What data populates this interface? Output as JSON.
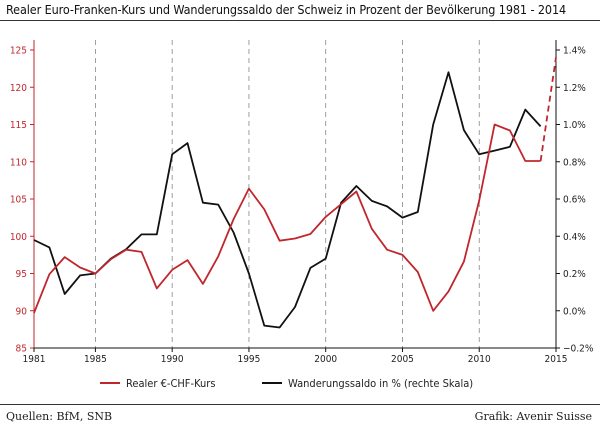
{
  "title": "Realer Euro-Franken-Kurs und Wanderungssaldo der Schweiz in Prozent der Bevölkerung 1981 - 2014",
  "footer": {
    "source": "Quellen: BfM, SNB",
    "credit": "Grafik: Avenir Suisse"
  },
  "colors": {
    "eur_chf": "#c0272d",
    "migration": "#111111",
    "grid": "#888888"
  },
  "chart_data": {
    "type": "line",
    "title": "Realer Euro-Franken-Kurs und Wanderungssaldo der Schweiz in Prozent der Bevölkerung 1981 - 2014",
    "x_ticks": [
      1981,
      1985,
      1990,
      1995,
      2000,
      2005,
      2010,
      2015
    ],
    "xlim": [
      1981,
      2015
    ],
    "ylim_left": [
      85,
      125
    ],
    "ylim_right": [
      -0.2,
      1.4
    ],
    "y_ticks_left": [
      85,
      90,
      95,
      100,
      105,
      110,
      115,
      120,
      125
    ],
    "y_ticks_right": [
      "−0.2%",
      "0.0%",
      "0.2%",
      "0.4%",
      "0.6%",
      "0.8%",
      "1.0%",
      "1.2%",
      "1.4%"
    ],
    "y_ticks_right_values": [
      -0.2,
      0.0,
      0.2,
      0.4,
      0.6,
      0.8,
      1.0,
      1.2,
      1.4
    ],
    "grid": "vertical dashed",
    "legend_position": "bottom",
    "series": [
      {
        "name": "Realer €-CHF-Kurs",
        "axis": "left",
        "x": [
          1981,
          1982,
          1983,
          1984,
          1985,
          1986,
          1987,
          1988,
          1989,
          1990,
          1991,
          1992,
          1993,
          1994,
          1995,
          1996,
          1997,
          1998,
          1999,
          2000,
          2001,
          2002,
          2003,
          2004,
          2005,
          2006,
          2007,
          2008,
          2009,
          2010,
          2011,
          2012,
          2013,
          2014
        ],
        "values": [
          89.7,
          94.9,
          97.2,
          95.8,
          95.0,
          96.9,
          98.2,
          97.9,
          93.0,
          95.5,
          96.8,
          93.6,
          97.3,
          102.3,
          106.4,
          103.6,
          99.4,
          99.7,
          100.3,
          102.6,
          104.3,
          106.0,
          101.0,
          98.2,
          97.5,
          95.2,
          90.0,
          92.6,
          96.6,
          104.8,
          115.0,
          114.2,
          110.1,
          110.1
        ],
        "projection": {
          "x": [
            2014,
            2015
          ],
          "values": [
            110.1,
            124.0
          ]
        }
      },
      {
        "name": "Wanderungssaldo in % (rechte Skala)",
        "axis": "right",
        "x": [
          1981,
          1982,
          1983,
          1984,
          1985,
          1986,
          1987,
          1988,
          1989,
          1990,
          1991,
          1992,
          1993,
          1994,
          1995,
          1996,
          1997,
          1998,
          1999,
          2000,
          2001,
          2002,
          2003,
          2004,
          2005,
          2006,
          2007,
          2008,
          2009,
          2010,
          2011,
          2012,
          2013,
          2014
        ],
        "values": [
          0.38,
          0.34,
          0.09,
          0.19,
          0.2,
          0.28,
          0.33,
          0.41,
          0.41,
          0.84,
          0.9,
          0.58,
          0.57,
          0.42,
          0.2,
          -0.08,
          -0.09,
          0.02,
          0.23,
          0.28,
          0.58,
          0.67,
          0.59,
          0.56,
          0.5,
          0.53,
          1.0,
          1.28,
          0.97,
          0.84,
          0.86,
          0.88,
          1.08,
          0.99
        ]
      }
    ]
  }
}
